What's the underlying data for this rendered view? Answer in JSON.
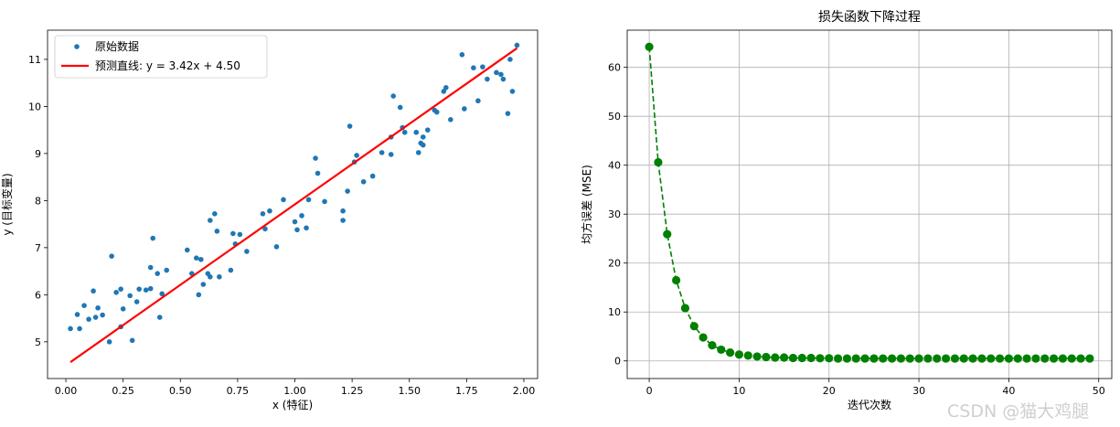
{
  "watermark": "CSDN @猫大鸡腿",
  "chart_data": [
    {
      "type": "scatter",
      "title": "",
      "xlabel": "x (特征)",
      "ylabel": "y (目标变量)",
      "xlim": [
        -0.08,
        2.06
      ],
      "ylim": [
        4.22,
        11.62
      ],
      "xticks": [
        0.0,
        0.25,
        0.5,
        0.75,
        1.0,
        1.25,
        1.5,
        1.75,
        2.0
      ],
      "xtick_labels": [
        "0.00",
        "0.25",
        "0.50",
        "0.75",
        "1.00",
        "1.25",
        "1.50",
        "1.75",
        "2.00"
      ],
      "yticks": [
        5,
        6,
        7,
        8,
        9,
        10,
        11
      ],
      "ytick_labels": [
        "5",
        "6",
        "7",
        "8",
        "9",
        "10",
        "11"
      ],
      "grid": false,
      "legend_position": "top-left",
      "series": [
        {
          "name": "原始数据",
          "kind": "scatter",
          "color": "#1f77b4",
          "points": [
            [
              0.02,
              5.28
            ],
            [
              0.05,
              5.58
            ],
            [
              0.06,
              5.28
            ],
            [
              0.08,
              5.77
            ],
            [
              0.1,
              5.48
            ],
            [
              0.12,
              6.08
            ],
            [
              0.13,
              5.52
            ],
            [
              0.14,
              5.72
            ],
            [
              0.16,
              5.57
            ],
            [
              0.19,
              5.0
            ],
            [
              0.2,
              6.82
            ],
            [
              0.22,
              6.05
            ],
            [
              0.24,
              6.12
            ],
            [
              0.24,
              5.32
            ],
            [
              0.25,
              5.7
            ],
            [
              0.28,
              5.98
            ],
            [
              0.29,
              5.03
            ],
            [
              0.31,
              5.85
            ],
            [
              0.32,
              6.12
            ],
            [
              0.35,
              6.1
            ],
            [
              0.37,
              6.13
            ],
            [
              0.37,
              6.58
            ],
            [
              0.38,
              7.2
            ],
            [
              0.4,
              6.45
            ],
            [
              0.41,
              5.52
            ],
            [
              0.42,
              6.02
            ],
            [
              0.44,
              6.52
            ],
            [
              0.53,
              6.95
            ],
            [
              0.55,
              6.45
            ],
            [
              0.57,
              6.78
            ],
            [
              0.58,
              6.0
            ],
            [
              0.59,
              6.75
            ],
            [
              0.6,
              6.22
            ],
            [
              0.62,
              6.45
            ],
            [
              0.63,
              7.58
            ],
            [
              0.63,
              6.38
            ],
            [
              0.65,
              7.72
            ],
            [
              0.66,
              7.35
            ],
            [
              0.67,
              6.38
            ],
            [
              0.72,
              6.52
            ],
            [
              0.73,
              7.3
            ],
            [
              0.74,
              7.08
            ],
            [
              0.76,
              7.28
            ],
            [
              0.79,
              6.92
            ],
            [
              0.86,
              7.72
            ],
            [
              0.87,
              7.4
            ],
            [
              0.89,
              7.78
            ],
            [
              0.92,
              7.02
            ],
            [
              0.95,
              8.02
            ],
            [
              1.0,
              7.55
            ],
            [
              1.01,
              7.38
            ],
            [
              1.03,
              7.68
            ],
            [
              1.05,
              7.42
            ],
            [
              1.06,
              8.02
            ],
            [
              1.09,
              8.9
            ],
            [
              1.1,
              8.58
            ],
            [
              1.13,
              7.98
            ],
            [
              1.21,
              7.78
            ],
            [
              1.21,
              7.58
            ],
            [
              1.23,
              8.2
            ],
            [
              1.24,
              9.58
            ],
            [
              1.26,
              8.82
            ],
            [
              1.27,
              8.96
            ],
            [
              1.3,
              8.4
            ],
            [
              1.34,
              8.52
            ],
            [
              1.38,
              9.02
            ],
            [
              1.42,
              8.98
            ],
            [
              1.42,
              9.35
            ],
            [
              1.43,
              10.22
            ],
            [
              1.46,
              9.98
            ],
            [
              1.47,
              9.55
            ],
            [
              1.48,
              9.45
            ],
            [
              1.53,
              9.45
            ],
            [
              1.54,
              9.02
            ],
            [
              1.55,
              9.22
            ],
            [
              1.56,
              9.35
            ],
            [
              1.56,
              9.18
            ],
            [
              1.58,
              9.5
            ],
            [
              1.61,
              9.92
            ],
            [
              1.62,
              9.88
            ],
            [
              1.65,
              10.32
            ],
            [
              1.66,
              10.4
            ],
            [
              1.68,
              9.72
            ],
            [
              1.73,
              11.1
            ],
            [
              1.74,
              9.95
            ],
            [
              1.78,
              10.82
            ],
            [
              1.8,
              10.12
            ],
            [
              1.82,
              10.84
            ],
            [
              1.84,
              10.58
            ],
            [
              1.88,
              10.72
            ],
            [
              1.9,
              10.68
            ],
            [
              1.91,
              10.58
            ],
            [
              1.93,
              9.85
            ],
            [
              1.94,
              11.0
            ],
            [
              1.95,
              10.32
            ],
            [
              1.97,
              11.3
            ]
          ]
        },
        {
          "name": "预测直线: y = 3.42x + 4.50",
          "kind": "line",
          "color": "#ff0000",
          "slope": 3.42,
          "intercept": 4.5,
          "x_range": [
            0.02,
            1.97
          ]
        }
      ]
    },
    {
      "type": "line",
      "title": "损失函数下降过程",
      "xlabel": "迭代次数",
      "ylabel": "均方误差 (MSE)",
      "xlim": [
        -2.45,
        51.45
      ],
      "ylim": [
        -3.6,
        67.6
      ],
      "xticks": [
        0,
        10,
        20,
        30,
        40,
        50
      ],
      "xtick_labels": [
        "0",
        "10",
        "20",
        "30",
        "40",
        "50"
      ],
      "yticks": [
        0,
        10,
        20,
        30,
        40,
        50,
        60
      ],
      "ytick_labels": [
        "0",
        "10",
        "20",
        "30",
        "40",
        "50",
        "60"
      ],
      "grid": true,
      "series": [
        {
          "name": "",
          "color": "#008000",
          "line_style": "dashed",
          "marker": "circle",
          "x": [
            0,
            1,
            2,
            3,
            4,
            5,
            6,
            7,
            8,
            9,
            10,
            11,
            12,
            13,
            14,
            15,
            16,
            17,
            18,
            19,
            20,
            21,
            22,
            23,
            24,
            25,
            26,
            27,
            28,
            29,
            30,
            31,
            32,
            33,
            34,
            35,
            36,
            37,
            38,
            39,
            40,
            41,
            42,
            43,
            44,
            45,
            46,
            47,
            48,
            49
          ],
          "values": [
            64.2,
            40.6,
            25.9,
            16.5,
            10.8,
            7.1,
            4.8,
            3.2,
            2.3,
            1.7,
            1.3,
            1.1,
            0.9,
            0.8,
            0.7,
            0.7,
            0.6,
            0.6,
            0.6,
            0.55,
            0.55,
            0.5,
            0.5,
            0.5,
            0.5,
            0.5,
            0.5,
            0.5,
            0.5,
            0.5,
            0.5,
            0.5,
            0.5,
            0.5,
            0.5,
            0.5,
            0.5,
            0.5,
            0.5,
            0.5,
            0.5,
            0.5,
            0.5,
            0.5,
            0.5,
            0.5,
            0.5,
            0.5,
            0.5,
            0.5
          ]
        }
      ]
    }
  ]
}
